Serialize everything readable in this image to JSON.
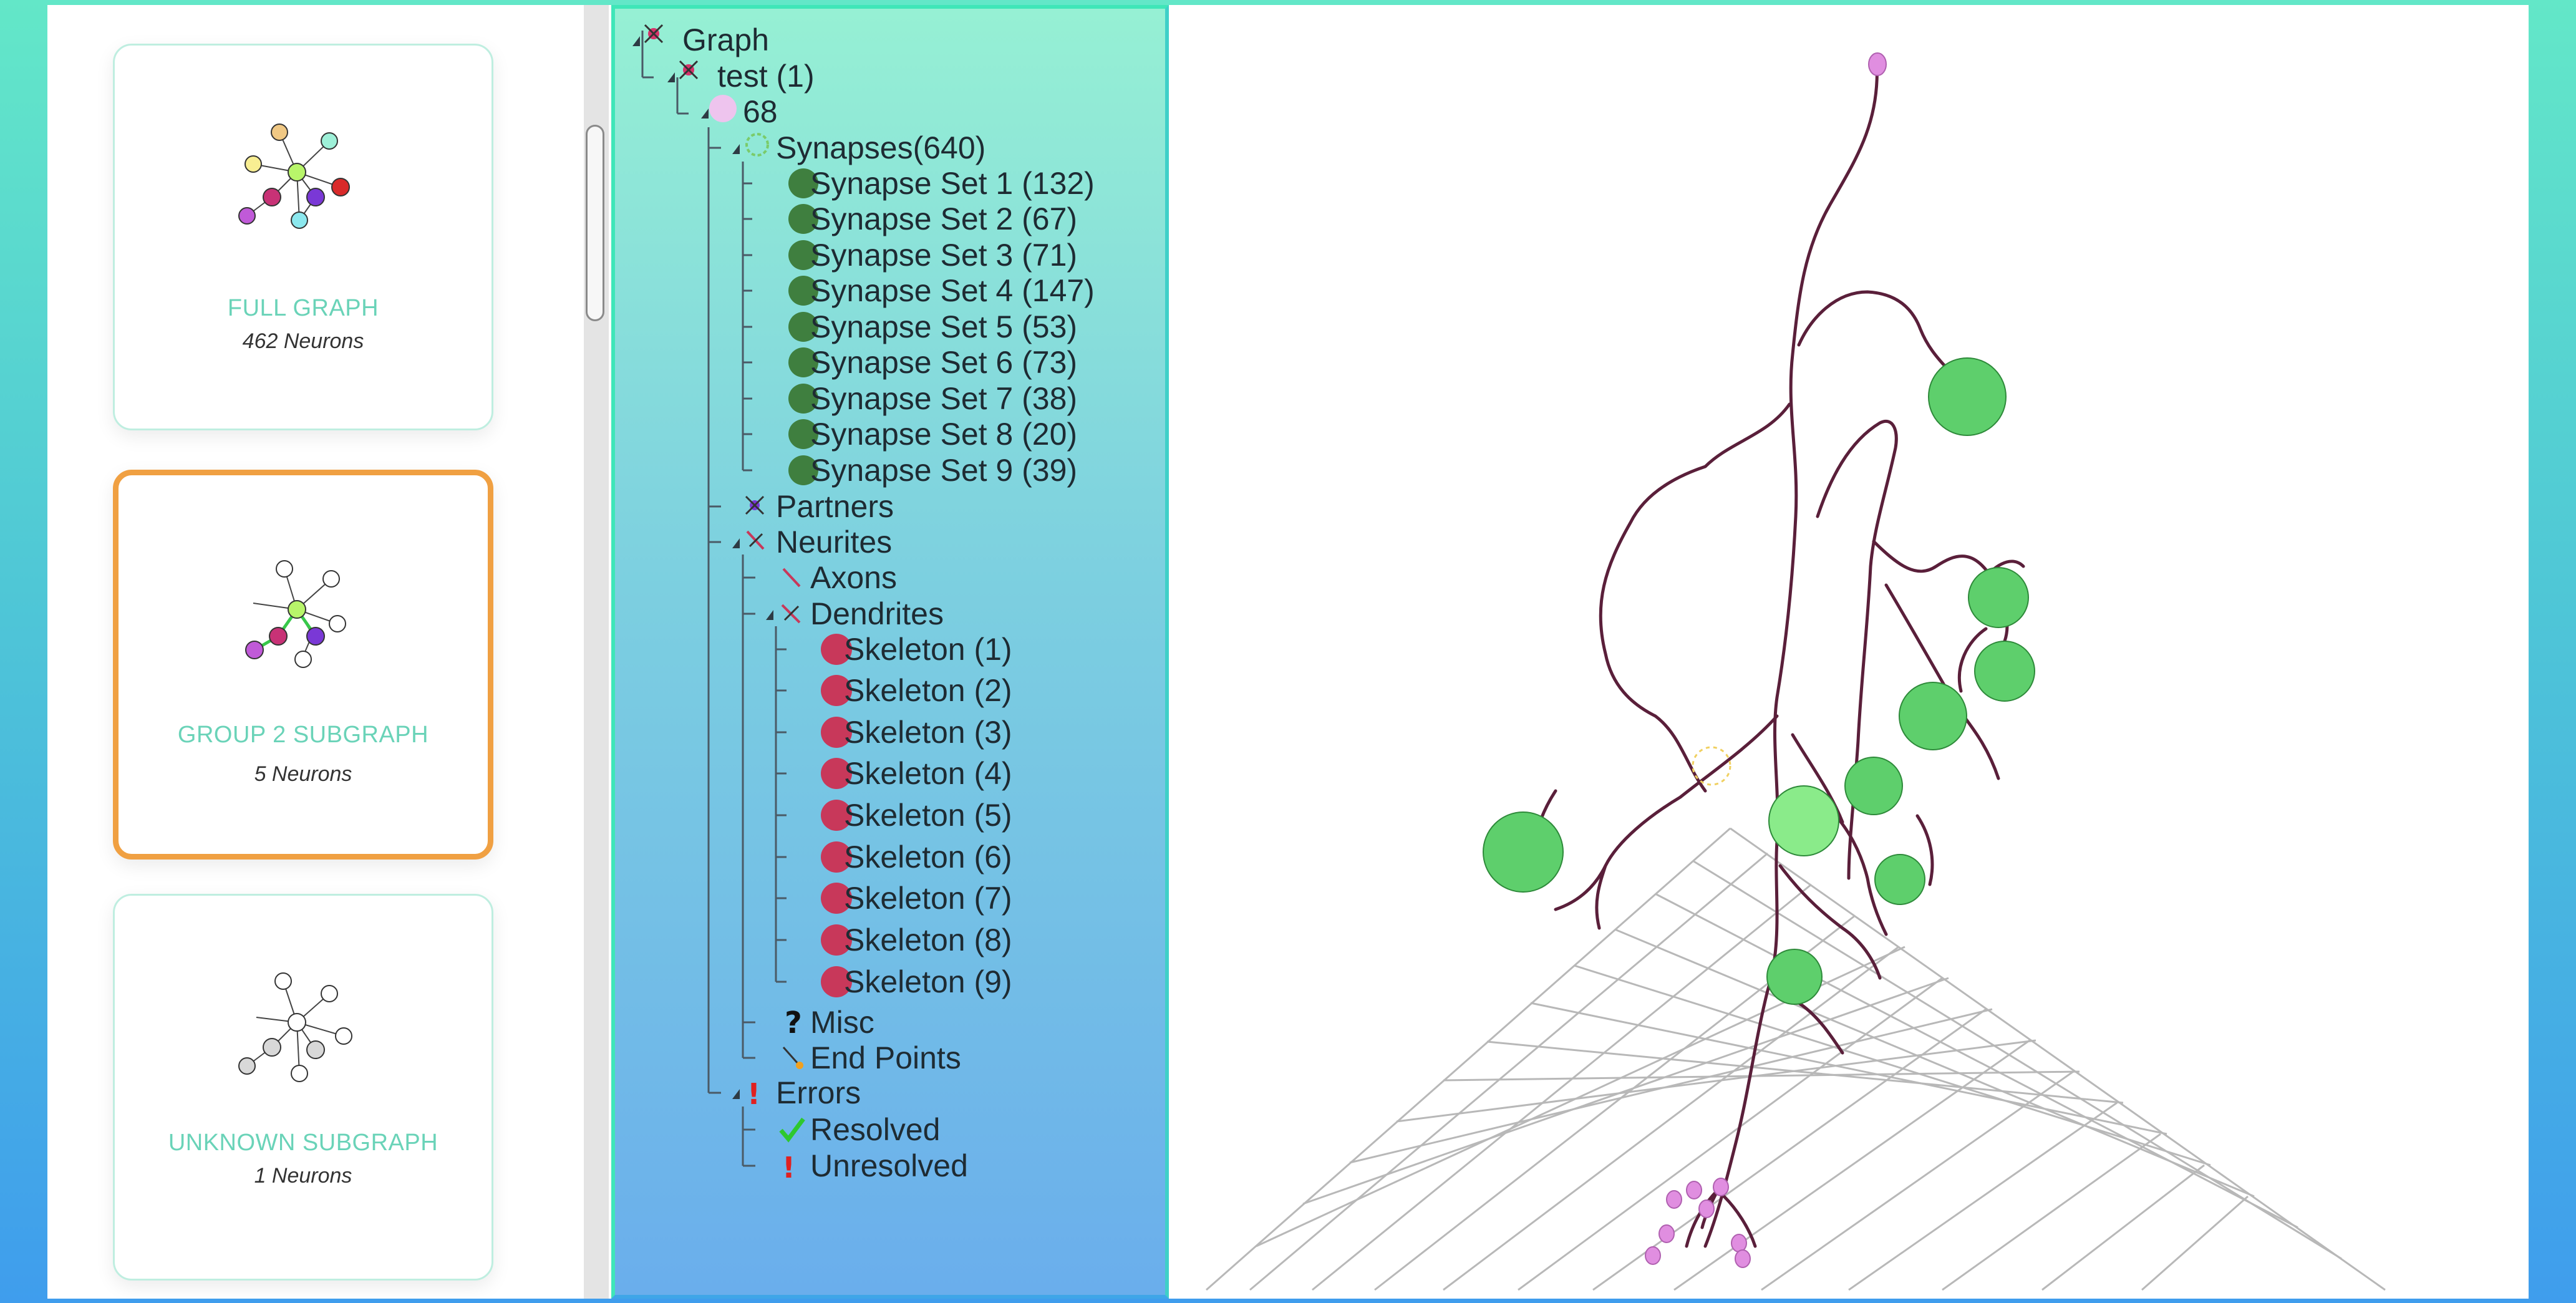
{
  "graphs": [
    {
      "title": "FULL GRAPH",
      "count": "462 Neurons",
      "selected": false
    },
    {
      "title": "GROUP 2 SUBGRAPH",
      "count": "5 Neurons",
      "selected": true
    },
    {
      "title": "UNKNOWN SUBGRAPH",
      "count": "1 Neurons",
      "selected": false
    }
  ],
  "tree": {
    "graph": "Graph",
    "test": "test (1)",
    "neuron": "68",
    "synapses": "Synapses(640)",
    "synapse_sets": [
      "Synapse Set 1 (132)",
      "Synapse Set 2 (67)",
      "Synapse Set 3 (71)",
      "Synapse Set 4 (147)",
      "Synapse Set 5 (53)",
      "Synapse Set 6 (73)",
      "Synapse Set 7 (38)",
      "Synapse Set 8 (20)",
      "Synapse Set 9 (39)"
    ],
    "partners": "Partners",
    "neurites": "Neurites",
    "axons": "Axons",
    "dendrites": "Dendrites",
    "skeletons": [
      "Skeleton (1)",
      "Skeleton (2)",
      "Skeleton (3)",
      "Skeleton (4)",
      "Skeleton (5)",
      "Skeleton (6)",
      "Skeleton (7)",
      "Skeleton (8)",
      "Skeleton (9)"
    ],
    "misc": "Misc",
    "end_points": "End Points",
    "errors": "Errors",
    "resolved": "Resolved",
    "unresolved": "Unresolved"
  },
  "colors": {
    "accent_selected": "#f0a042",
    "card_title": "#6ad3b8",
    "synapse_sphere": "#3f7f3f",
    "skeleton_sphere": "#c8385a",
    "neuron_trace": "#5a1f3a",
    "bouton": "#e08ee0",
    "synapse_blob": "#5ecf6c"
  }
}
